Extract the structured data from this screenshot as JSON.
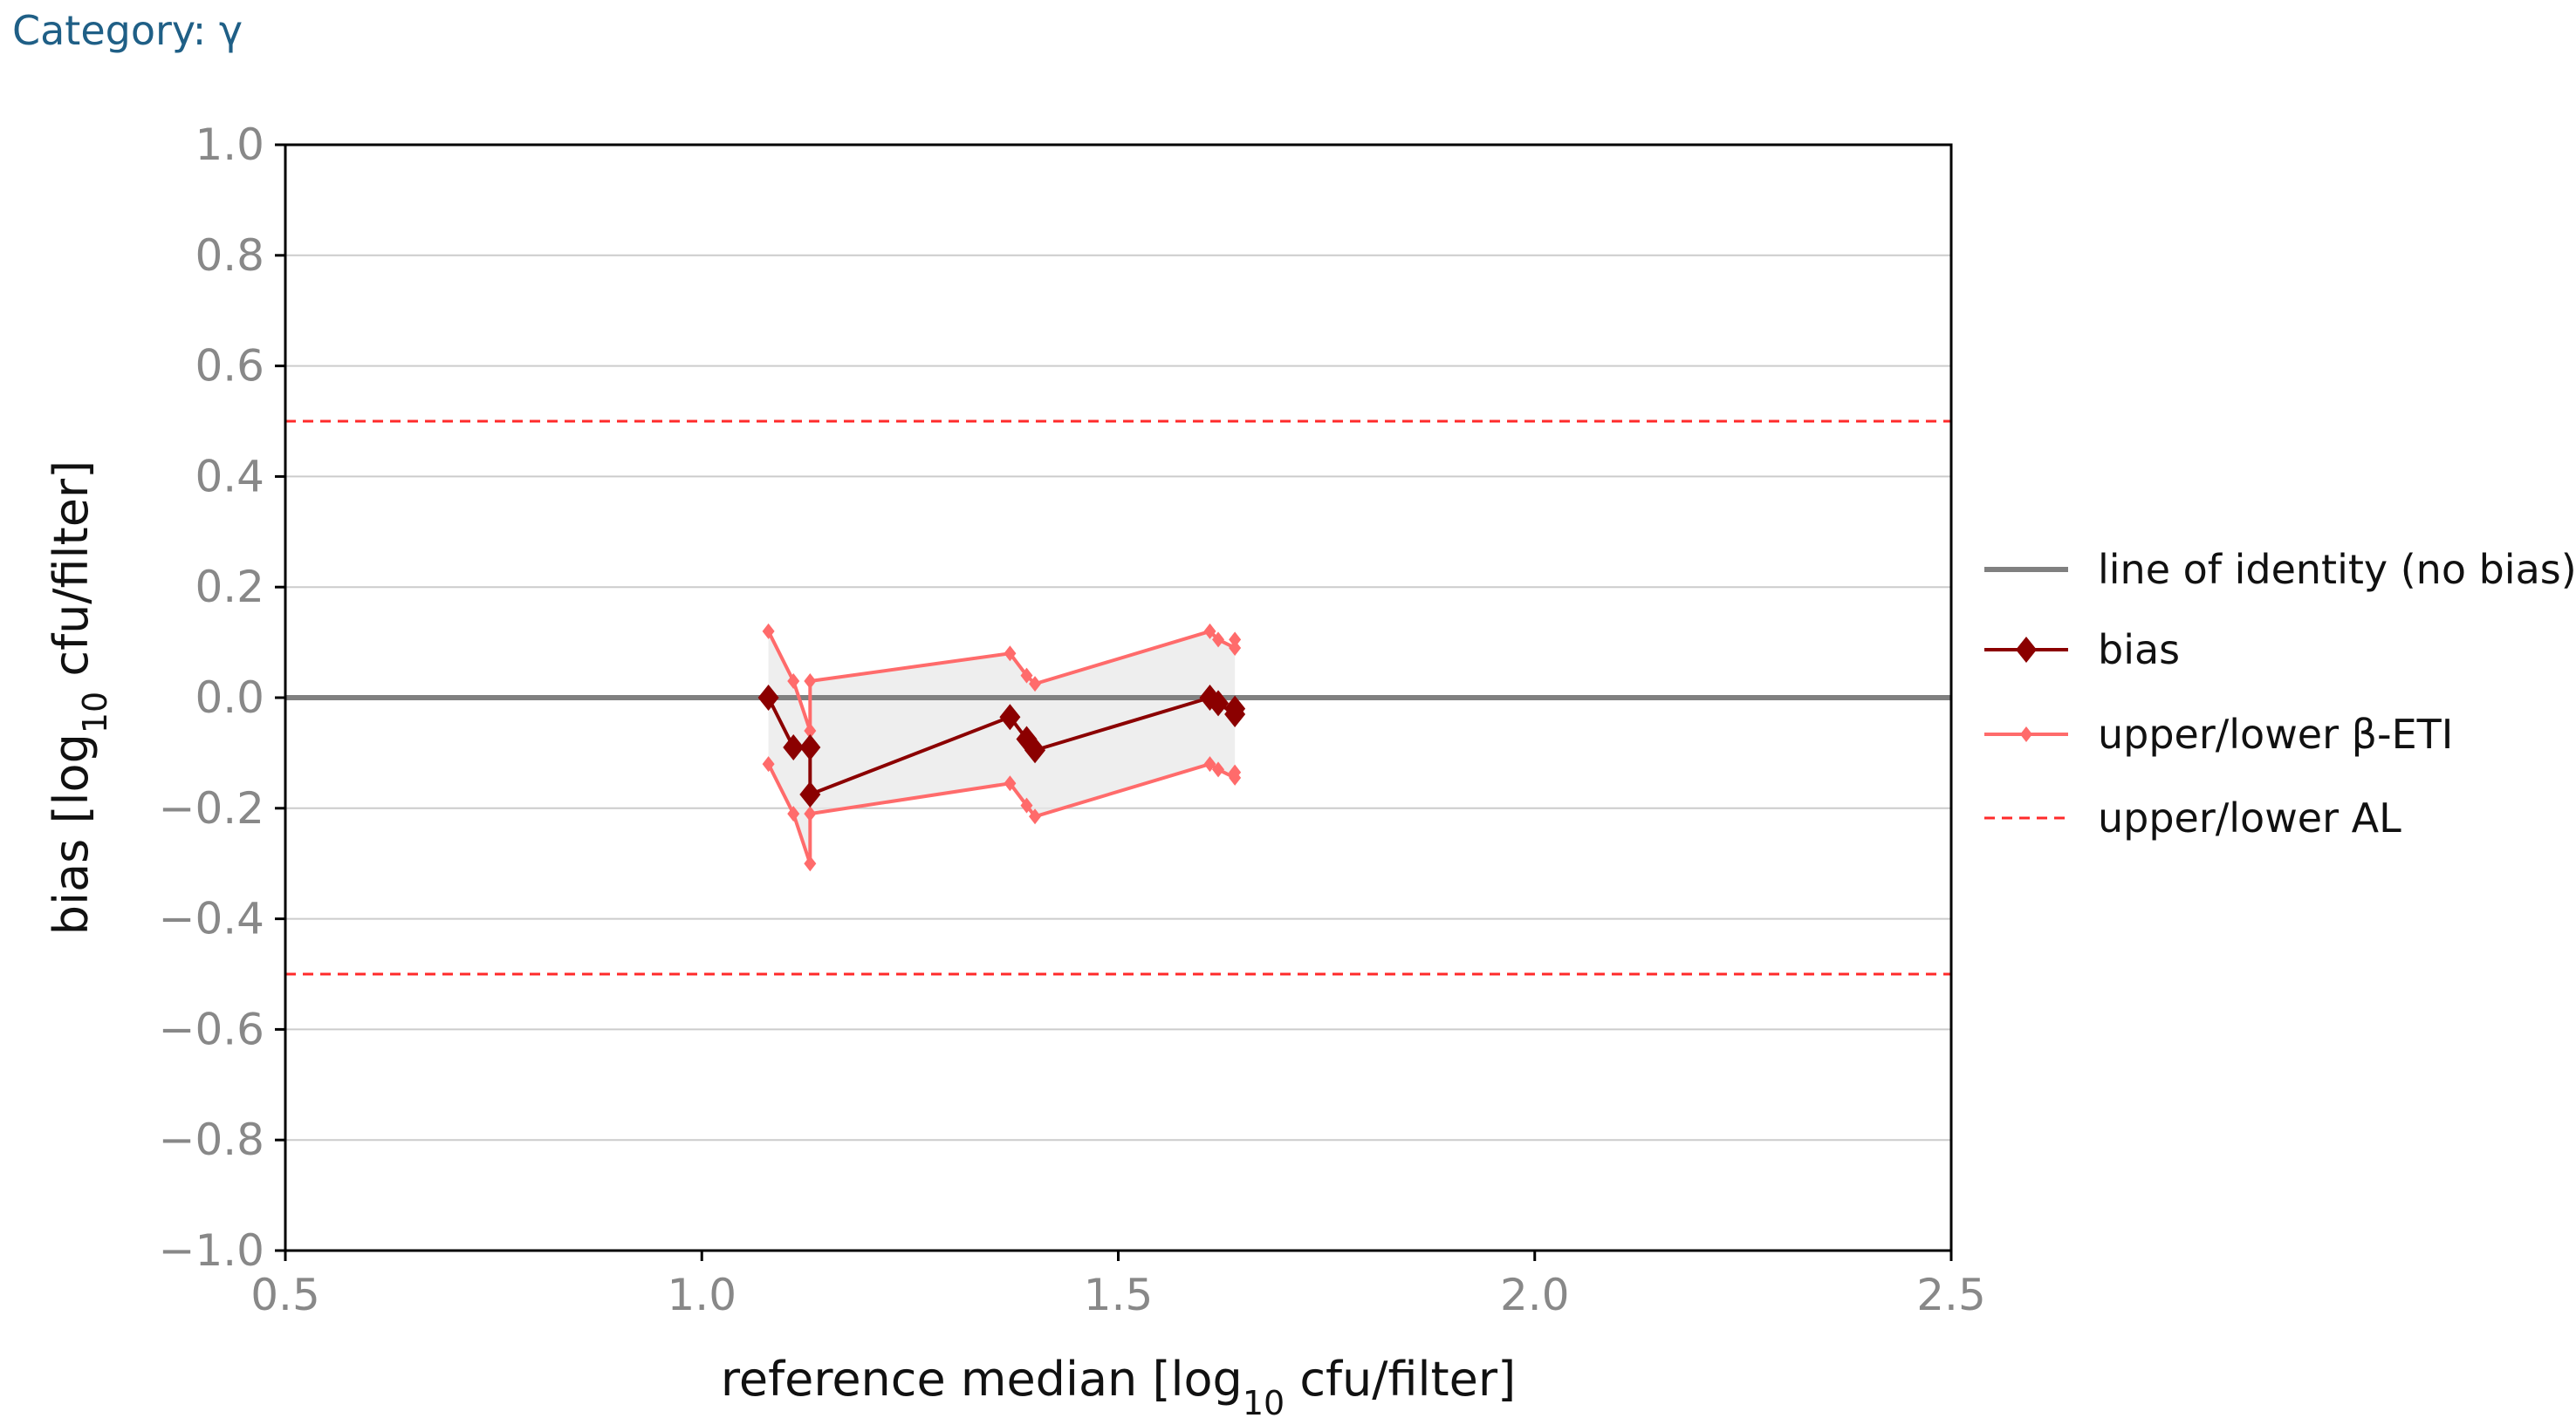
{
  "header": {
    "label": "Category:",
    "value": "γ"
  },
  "colors": {
    "header_text": "#1f5f86",
    "identity": "#808080",
    "bias": "#8b0000",
    "eti": "#ff6b6b",
    "eti_fill": "#e8e8e8",
    "al": "#ff2a2a",
    "grid": "#cccccc",
    "tick_text": "#888888"
  },
  "chart_data": {
    "type": "line",
    "title": "",
    "xlabel_parts": [
      "reference median [log",
      "10",
      " cfu/filter]"
    ],
    "ylabel_parts": [
      "bias [log",
      "10",
      " cfu/filter]"
    ],
    "xlim": [
      0.5,
      2.5
    ],
    "ylim": [
      -1.0,
      1.0
    ],
    "xticks": [
      0.5,
      1.0,
      1.5,
      2.0,
      2.5
    ],
    "xtick_labels": [
      "0.5",
      "1.0",
      "1.5",
      "2.0",
      "2.5"
    ],
    "yticks": [
      1.0,
      0.8,
      0.6,
      0.4,
      0.2,
      0.0,
      -0.2,
      -0.4,
      -0.6,
      -0.8,
      -1.0
    ],
    "ytick_labels": [
      "1.0",
      "0.8",
      "0.6",
      "0.4",
      "0.2",
      "0.0",
      "−0.2",
      "−0.4",
      "−0.6",
      "−0.8",
      "−1.0"
    ],
    "grid": "horizontal",
    "legend_position": "right",
    "series": [
      {
        "name": "line of identity (no bias)",
        "style": "solid-gray",
        "x": [
          0.5,
          2.5
        ],
        "y": [
          0.0,
          0.0
        ]
      },
      {
        "name": "bias",
        "style": "line-diamond",
        "x": [
          1.08,
          1.11,
          1.13,
          1.13,
          1.37,
          1.39,
          1.4,
          1.61,
          1.62,
          1.64,
          1.64
        ],
        "y": [
          0.0,
          -0.09,
          -0.09,
          -0.175,
          -0.035,
          -0.075,
          -0.095,
          0.0,
          -0.01,
          -0.03,
          -0.02
        ]
      },
      {
        "name": "upper/lower β-ETI",
        "style": "line-small-diamond",
        "x": [
          1.08,
          1.11,
          1.13,
          1.13,
          1.37,
          1.39,
          1.4,
          1.61,
          1.62,
          1.64,
          1.64
        ],
        "upper": [
          0.12,
          0.03,
          -0.06,
          0.03,
          0.08,
          0.04,
          0.025,
          0.12,
          0.105,
          0.09,
          0.105
        ],
        "lower": [
          -0.12,
          -0.21,
          -0.3,
          -0.21,
          -0.155,
          -0.195,
          -0.215,
          -0.12,
          -0.13,
          -0.145,
          -0.135
        ]
      },
      {
        "name": "upper/lower AL",
        "style": "dashed-red",
        "x": [
          0.5,
          2.5
        ],
        "upper": [
          0.5,
          0.5
        ],
        "lower": [
          -0.5,
          -0.5
        ]
      }
    ]
  }
}
